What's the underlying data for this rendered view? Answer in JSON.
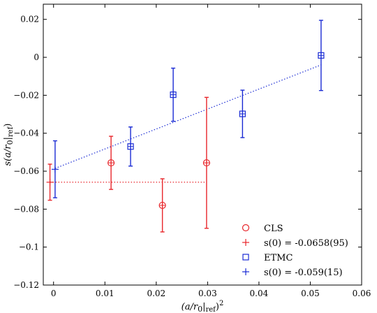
{
  "chart_data": {
    "type": "scatter",
    "xlabel": "(a/r0|ref)^2",
    "ylabel": "s(a/r0|ref)",
    "xlim": [
      -0.002,
      0.06
    ],
    "ylim": [
      -0.12,
      0.028
    ],
    "x_ticks": [
      0,
      0.01,
      0.02,
      0.03,
      0.04,
      0.05,
      0.06
    ],
    "x_tick_labels": [
      "0",
      "0.01",
      "0.02",
      "0.03",
      "0.04",
      "0.05",
      "0.06"
    ],
    "y_ticks": [
      0.02,
      0,
      -0.02,
      -0.04,
      -0.06,
      -0.08,
      -0.1,
      -0.12
    ],
    "y_tick_labels": [
      "0.02",
      "0",
      "−0.02",
      "−0.04",
      "−0.06",
      "−0.08",
      "−0.1",
      "−0.12"
    ],
    "grid": false,
    "legend_position": "bottom-right",
    "series": [
      {
        "name": "CLS",
        "marker": "circle",
        "color": "#e8262b",
        "points": [
          {
            "x": 0.0112,
            "y": -0.0556,
            "err": 0.014
          },
          {
            "x": 0.0212,
            "y": -0.078,
            "err": 0.014
          },
          {
            "x": 0.0298,
            "y": -0.0556,
            "err": 0.0345
          }
        ]
      },
      {
        "name": "s(0) = -0.0658(95)",
        "marker": "plus",
        "color": "#e8262b",
        "points": [
          {
            "x": -0.0007,
            "y": -0.0658,
            "err": 0.0095
          }
        ],
        "fit_line": {
          "x0": -0.0007,
          "y0": -0.0658,
          "x1": 0.0298,
          "y1": -0.0658
        }
      },
      {
        "name": "ETMC",
        "marker": "square",
        "color": "#1a2bd4",
        "points": [
          {
            "x": 0.015,
            "y": -0.047,
            "err": 0.0103
          },
          {
            "x": 0.0233,
            "y": -0.0197,
            "err": 0.014
          },
          {
            "x": 0.0368,
            "y": -0.0298,
            "err": 0.0125
          },
          {
            "x": 0.0521,
            "y": 0.001,
            "err": 0.0185
          }
        ]
      },
      {
        "name": "s(0) = -0.059(15)",
        "marker": "plus",
        "color": "#1a2bd4",
        "points": [
          {
            "x": 0.0003,
            "y": -0.059,
            "err": 0.015
          }
        ],
        "fit_line": {
          "x0": 0.0003,
          "y0": -0.0585,
          "x1": 0.0521,
          "y1": -0.004
        }
      }
    ]
  }
}
